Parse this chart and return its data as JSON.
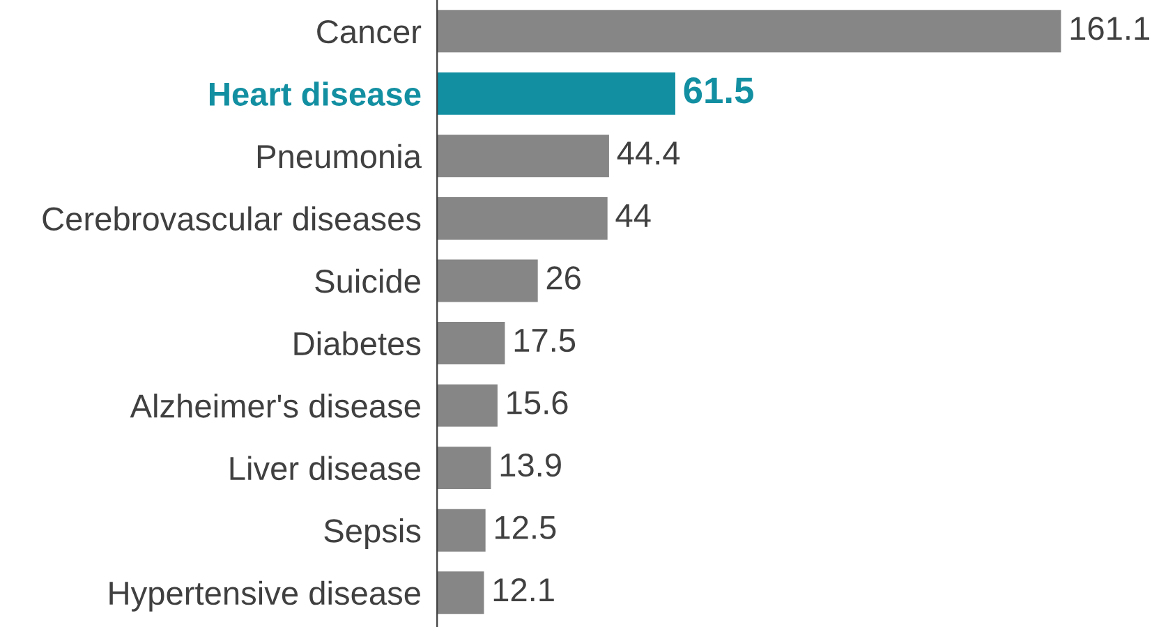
{
  "chart_data": {
    "type": "bar",
    "orientation": "horizontal",
    "categories": [
      "Cancer",
      "Heart disease",
      "Pneumonia",
      "Cerebrovascular diseases",
      "Suicide",
      "Diabetes",
      "Alzheimer's disease",
      "Liver disease",
      "Sepsis",
      "Hypertensive disease"
    ],
    "values": [
      161.1,
      61.5,
      44.4,
      44,
      26,
      17.5,
      15.6,
      13.9,
      12.5,
      12.1
    ],
    "colors": [
      "#868686",
      "#138fa2",
      "#868686",
      "#868686",
      "#868686",
      "#868686",
      "#868686",
      "#868686",
      "#868686",
      "#868686"
    ],
    "data_labels": true,
    "grid": false,
    "legend": false
  }
}
